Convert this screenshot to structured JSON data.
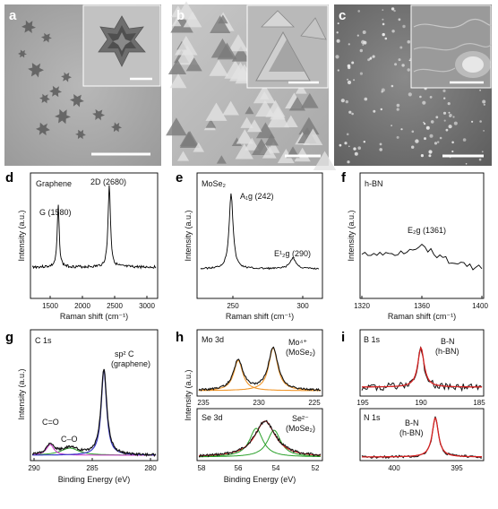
{
  "row1": {
    "panels": [
      {
        "letter": "a"
      },
      {
        "letter": "b"
      },
      {
        "letter": "c"
      }
    ]
  },
  "row2": {
    "d": {
      "letter": "d",
      "material": "Graphene",
      "peaks": [
        "G (1580)",
        "2D (2680)"
      ],
      "ylabel": "Intensity (a.u.)",
      "xlabel": "Raman shift (cm⁻¹)",
      "xticks": [
        "1500",
        "2000",
        "2500",
        "3000"
      ]
    },
    "e": {
      "letter": "e",
      "material": "MoSe₂",
      "peaks": [
        "A₁g (242)",
        "E¹₂g (290)"
      ],
      "ylabel": "Intensity (a.u.)",
      "xlabel": "Raman shift (cm⁻¹)",
      "xticks": [
        "250",
        "300"
      ]
    },
    "f": {
      "letter": "f",
      "material": "h-BN",
      "peaks": [
        "E₂g (1361)"
      ],
      "ylabel": "Intensity (a.u.)",
      "xlabel": "Raman shift (cm⁻¹)",
      "xticks": [
        "1320",
        "1360",
        "1400"
      ]
    }
  },
  "row3": {
    "g": {
      "letter": "g",
      "core": "C 1s",
      "labels": [
        "sp² C",
        "(graphene)",
        "C=O",
        "C–O"
      ],
      "ylabel": "Intensity (a.u.)",
      "xlabel": "Binding Energy (eV)",
      "xticks": [
        "290",
        "285",
        "280"
      ]
    },
    "h": {
      "letter": "h",
      "core_top": "Mo 3d",
      "label_top": [
        "Mo⁴⁺",
        "(MoSe₂)"
      ],
      "xticks_top": [
        "235",
        "230",
        "225"
      ],
      "core_bottom": "Se 3d",
      "label_bottom": [
        "Se²⁻",
        "(MoSe₂)"
      ],
      "ylabel": "Intensity (a.u.)",
      "xlabel": "Binding Energy (eV)",
      "xticks": [
        "58",
        "56",
        "54",
        "52"
      ]
    },
    "i": {
      "letter": "i",
      "core_top": "B 1s",
      "label_top": [
        "B-N",
        "(h-BN)"
      ],
      "xticks_top": [
        "195",
        "190",
        "185"
      ],
      "core_bottom": "N 1s",
      "label_bottom": [
        "B-N",
        "(h-BN)"
      ],
      "xticks": [
        "400",
        "395"
      ]
    }
  },
  "colors": {
    "black": "#111111",
    "blue": "#3a3ac8",
    "green": "#2aa02a",
    "magenta": "#cc33cc",
    "red": "#d42020",
    "orange": "#f0962a"
  }
}
